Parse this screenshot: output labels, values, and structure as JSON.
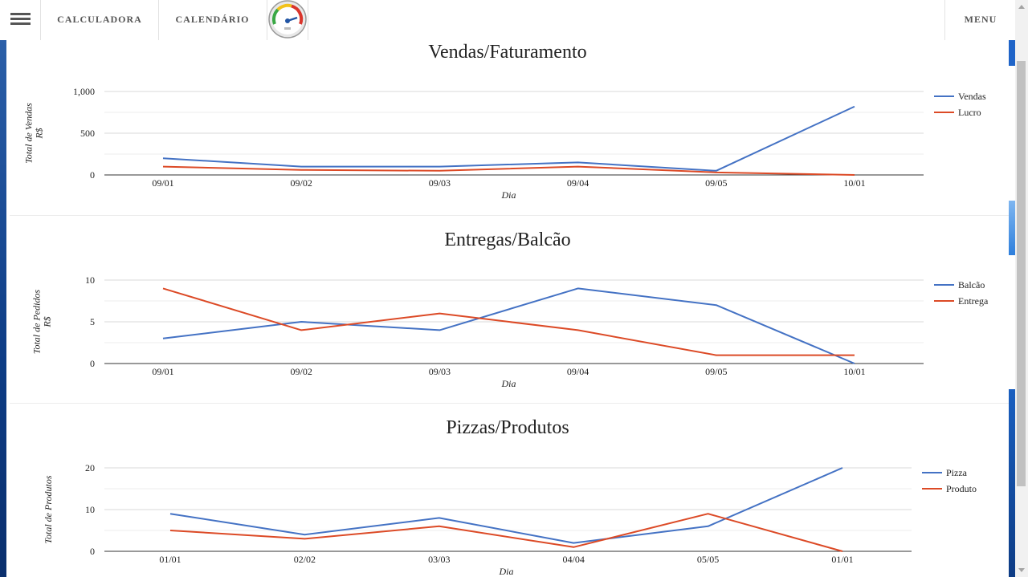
{
  "nav": {
    "calculadora": "CALCULADORA",
    "calendario": "CALENDÁRIO",
    "menu": "MENU"
  },
  "colors": {
    "series1": "#4472c4",
    "series2": "#dc4a26",
    "grid": "#d9d9d9",
    "axis": "#333333",
    "edge_blue": "#0d3c85"
  },
  "chart_data": [
    {
      "type": "line",
      "title": "Vendas/Faturamento",
      "xlabel": "Dia",
      "ylabel": [
        "Total de Vendas",
        "R$"
      ],
      "categories": [
        "09/01",
        "09/02",
        "09/03",
        "09/04",
        "09/05",
        "10/01"
      ],
      "yticks": [
        "0",
        "500",
        "1,000"
      ],
      "ylim": [
        0,
        1000
      ],
      "grid": true,
      "legend": "right",
      "series": [
        {
          "name": "Vendas",
          "values": [
            200,
            100,
            100,
            150,
            50,
            820
          ]
        },
        {
          "name": "Lucro",
          "values": [
            100,
            60,
            50,
            100,
            30,
            0
          ]
        }
      ]
    },
    {
      "type": "line",
      "title": "Entregas/Balcão",
      "xlabel": "Dia",
      "ylabel": [
        "Total de Pedidos",
        "R$"
      ],
      "categories": [
        "09/01",
        "09/02",
        "09/03",
        "09/04",
        "09/05",
        "10/01"
      ],
      "yticks": [
        "0",
        "5",
        "10"
      ],
      "ylim": [
        0,
        10
      ],
      "grid": true,
      "legend": "right",
      "series": [
        {
          "name": "Balcão",
          "values": [
            3,
            5,
            4,
            9,
            7,
            0
          ]
        },
        {
          "name": "Entrega",
          "values": [
            9,
            4,
            6,
            4,
            1,
            1
          ]
        }
      ]
    },
    {
      "type": "line",
      "title": "Pizzas/Produtos",
      "xlabel": "Dia",
      "ylabel": [
        "Total de Produtos"
      ],
      "categories": [
        "01/01",
        "02/02",
        "03/03",
        "04/04",
        "05/05",
        "01/01"
      ],
      "yticks": [
        "0",
        "10",
        "20"
      ],
      "ylim": [
        0,
        20
      ],
      "grid": true,
      "legend": "right",
      "series": [
        {
          "name": "Pizza",
          "values": [
            9,
            4,
            8,
            2,
            6,
            20
          ]
        },
        {
          "name": "Produto",
          "values": [
            5,
            3,
            6,
            1,
            9,
            0
          ]
        }
      ]
    }
  ]
}
